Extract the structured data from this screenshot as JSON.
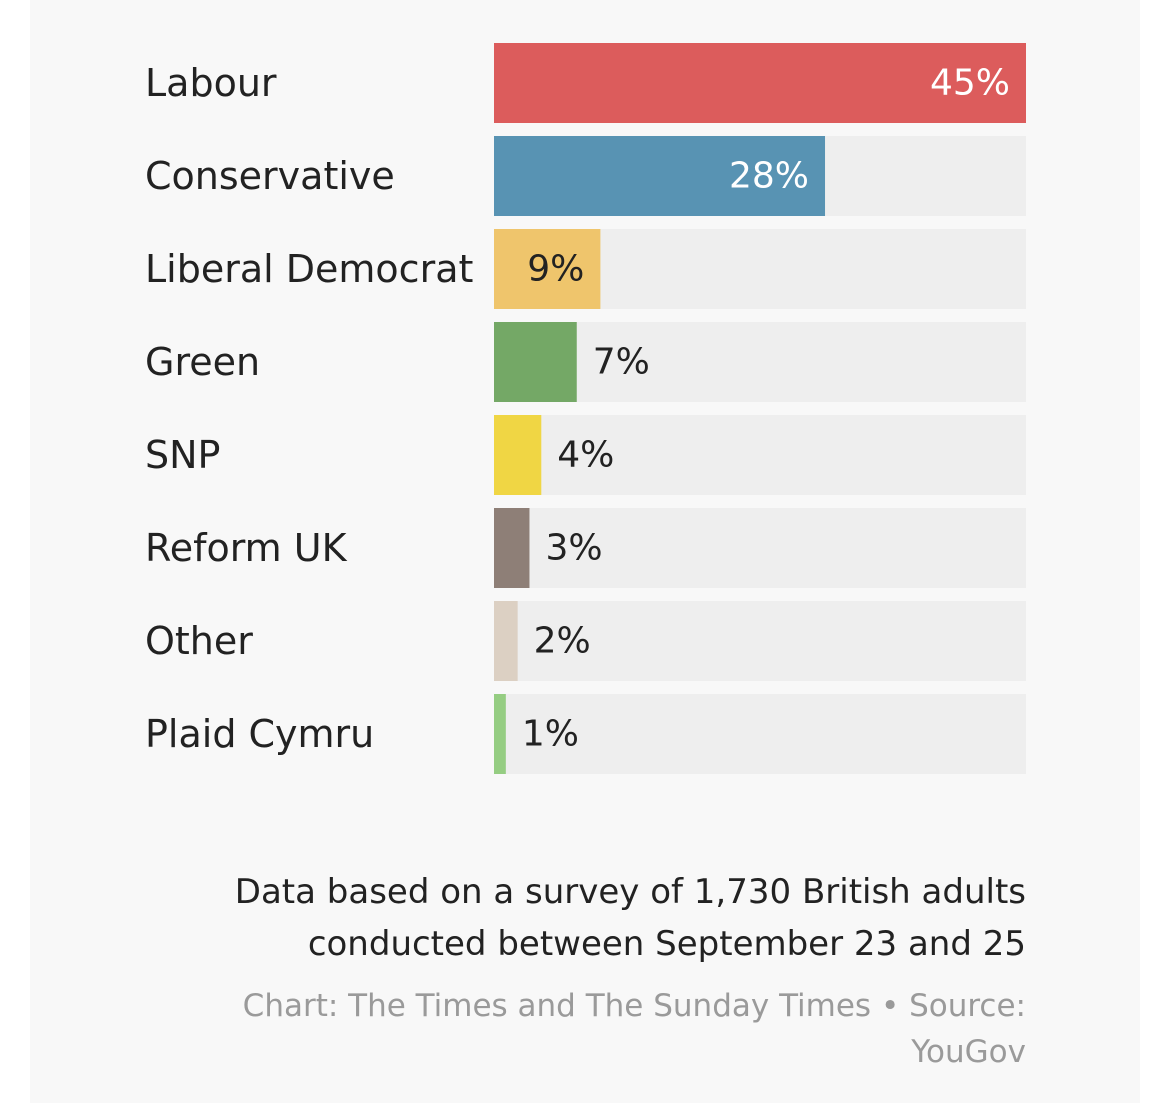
{
  "chart_data": {
    "type": "bar",
    "orientation": "horizontal",
    "categories": [
      "Labour",
      "Conservative",
      "Liberal Democrat",
      "Green",
      "SNP",
      "Reform UK",
      "Other",
      "Plaid Cymru"
    ],
    "values": [
      45,
      28,
      9,
      7,
      4,
      3,
      2,
      1
    ],
    "value_labels": [
      "45%",
      "28%",
      "9%",
      "7%",
      "4%",
      "3%",
      "2%",
      "1%"
    ],
    "colors": [
      "#dc5c5c",
      "#5893b3",
      "#efc56c",
      "#74a866",
      "#f0d644",
      "#8e7f77",
      "#dcd0c3",
      "#95cd82"
    ],
    "xlim": [
      0,
      45
    ],
    "unit": "%",
    "track_color": "#eeeeee",
    "grid": false,
    "legend": "none"
  },
  "footnote": {
    "line1": "Data based on a survey of 1,730 British adults",
    "line2": "conducted between September 23 and 25"
  },
  "credit": {
    "line1": "Chart: The Times and The Sunday Times • Source:",
    "line2": "YouGov"
  }
}
